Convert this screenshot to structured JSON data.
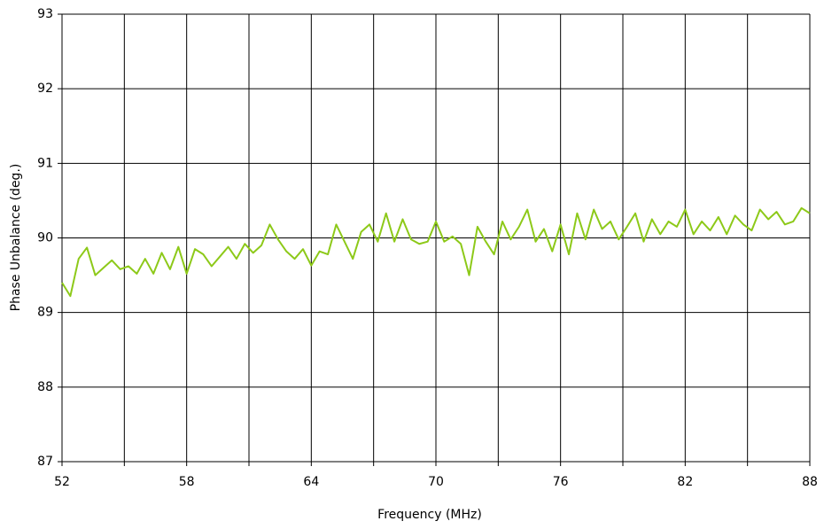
{
  "chart_data": {
    "type": "line",
    "xlabel": "Frequency (MHz)",
    "ylabel": "Phase Unbalance (deg.)",
    "x": [
      52.0,
      52.4,
      52.8,
      53.2,
      53.6,
      54.0,
      54.4,
      54.8,
      55.2,
      55.6,
      56.0,
      56.4,
      56.8,
      57.2,
      57.6,
      58.0,
      58.4,
      58.8,
      59.2,
      59.6,
      60.0,
      60.4,
      60.8,
      61.2,
      61.6,
      62.0,
      62.4,
      62.8,
      63.2,
      63.6,
      64.0,
      64.4,
      64.8,
      65.2,
      65.6,
      66.0,
      66.4,
      66.8,
      67.2,
      67.6,
      68.0,
      68.4,
      68.8,
      69.2,
      69.6,
      70.0,
      70.4,
      70.8,
      71.2,
      71.6,
      72.0,
      72.4,
      72.8,
      73.2,
      73.6,
      74.0,
      74.4,
      74.8,
      75.2,
      75.6,
      76.0,
      76.4,
      76.8,
      77.2,
      77.6,
      78.0,
      78.4,
      78.8,
      79.2,
      79.6,
      80.0,
      80.4,
      80.8,
      81.2,
      81.6,
      82.0,
      82.4,
      82.8,
      83.2,
      83.6,
      84.0,
      84.4,
      84.8,
      85.2,
      85.6,
      86.0,
      86.4,
      86.8,
      87.2,
      87.6,
      88.0
    ],
    "series": [
      {
        "name": "Phase Unbalance",
        "color": "#8dc919",
        "values": [
          89.4,
          89.22,
          89.72,
          89.87,
          89.5,
          89.6,
          89.7,
          89.58,
          89.62,
          89.52,
          89.72,
          89.52,
          89.8,
          89.58,
          89.88,
          89.52,
          89.85,
          89.78,
          89.62,
          89.75,
          89.88,
          89.72,
          89.92,
          89.8,
          89.9,
          90.18,
          89.98,
          89.82,
          89.72,
          89.85,
          89.63,
          89.82,
          89.78,
          90.18,
          89.95,
          89.72,
          90.08,
          90.18,
          89.95,
          90.33,
          89.95,
          90.25,
          89.98,
          89.92,
          89.95,
          90.22,
          89.95,
          90.02,
          89.92,
          89.5,
          90.15,
          89.95,
          89.78,
          90.22,
          89.98,
          90.15,
          90.38,
          89.95,
          90.12,
          89.82,
          90.18,
          89.78,
          90.33,
          89.98,
          90.38,
          90.12,
          90.22,
          89.98,
          90.15,
          90.33,
          89.95,
          90.25,
          90.05,
          90.22,
          90.15,
          90.38,
          90.05,
          90.22,
          90.1,
          90.28,
          90.05,
          90.3,
          90.18,
          90.1,
          90.38,
          90.25,
          90.35,
          90.18,
          90.22,
          90.4,
          90.33
        ]
      }
    ],
    "xlim": [
      52,
      88
    ],
    "xticks": [
      52,
      58,
      64,
      70,
      76,
      82,
      88
    ],
    "xgrid": [
      52,
      55,
      58,
      61,
      64,
      67,
      70,
      73,
      76,
      79,
      82,
      85,
      88
    ],
    "ylim": [
      87,
      93
    ],
    "yticks": [
      87,
      88,
      89,
      90,
      91,
      92,
      93
    ],
    "grid": true
  }
}
